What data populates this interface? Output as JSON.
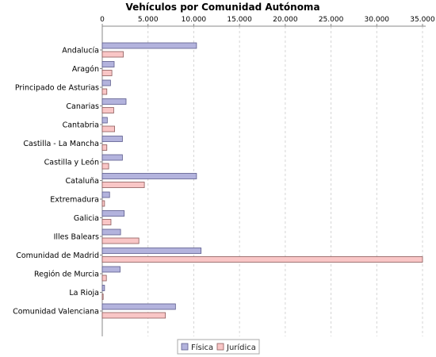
{
  "chart_data": {
    "type": "bar",
    "orientation": "horizontal",
    "title": "Vehículos por Comunidad Autónoma",
    "xlabel": "",
    "ylabel": "",
    "xlim": [
      0,
      35000
    ],
    "x_ticks": [
      0,
      5000,
      10000,
      15000,
      20000,
      25000,
      30000,
      35000
    ],
    "x_tick_labels": [
      "0",
      "5.000",
      "10.000",
      "15.000",
      "20.000",
      "25.000",
      "30.000",
      "35.000"
    ],
    "axis_position": "top",
    "grid": true,
    "legend_position": "bottom",
    "categories": [
      "Andalucía",
      "Aragón",
      "Principado de Asturias",
      "Canarias",
      "Cantabria",
      "Castilla - La Mancha",
      "Castilla y León",
      "Cataluña",
      "Extremadura",
      "Galicia",
      "Illes Balears",
      "Comunidad de Madrid",
      "Región de Murcia",
      "La Rioja",
      "Comunidad Valenciana"
    ],
    "series": [
      {
        "name": "Física",
        "color": "#b3b3dd",
        "stroke": "#5a5a8c",
        "values": [
          10300,
          1300,
          900,
          2600,
          550,
          2200,
          2200,
          10300,
          800,
          2400,
          2000,
          10800,
          1950,
          250,
          8000
        ]
      },
      {
        "name": "Jurídica",
        "color": "#f9c6c6",
        "stroke": "#8c5a5a",
        "values": [
          2300,
          1050,
          500,
          1250,
          1350,
          500,
          700,
          4600,
          250,
          950,
          4000,
          35000,
          450,
          100,
          6900
        ]
      }
    ]
  }
}
